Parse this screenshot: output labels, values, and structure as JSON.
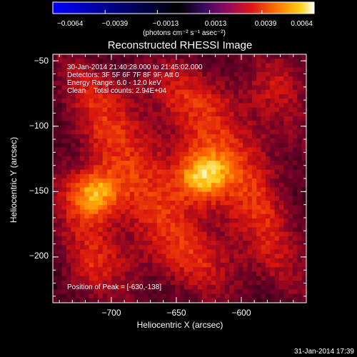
{
  "colorbar": {
    "tick_labels": [
      "−0.0064",
      "−0.0039",
      "−0.0013",
      "0.0013",
      "0.0039",
      "0.0064"
    ],
    "unit_label": "(photons cm⁻² s⁻¹ asec⁻²)",
    "range": [
      -0.0064,
      0.0064
    ],
    "colormap": [
      "#0000ff",
      "#000000",
      "#2a0a5a",
      "#7a0a70",
      "#d0101a",
      "#ff6a00",
      "#ffd21a",
      "#ffffff"
    ]
  },
  "chart_data": {
    "type": "heatmap",
    "title": "Reconstructed RHESSI Image",
    "xlabel": "Heliocentric X (arcsec)",
    "ylabel": "Heliocentric Y (arcsec)",
    "xlim": [
      -745,
      -550
    ],
    "ylim": [
      -235,
      -45
    ],
    "x_ticks": [
      -700,
      -650,
      -600
    ],
    "y_ticks": [
      -50,
      -100,
      -150,
      -200
    ],
    "x_tick_labels": [
      "−700",
      "−650",
      "−600"
    ],
    "y_tick_labels": [
      "−50",
      "−100",
      "−150",
      "−200"
    ],
    "sources": [
      {
        "x": -630,
        "y": -138,
        "peak": 1.0
      },
      {
        "x": -713,
        "y": -152,
        "peak": 0.9
      }
    ],
    "peak_position": [
      -630,
      -138
    ],
    "annotations": [
      "30-Jan-2014 21:40:28.000 to 21:45:02.000",
      "Detectors: 3F 5F 6F 7F 8F 9F, Att 0",
      "Energy Range: 6.0 - 12.0 keV",
      "Clean    Total counts: 2.94E+04"
    ],
    "peak_label": "Position of Peak = [-630,-138]"
  },
  "footer": {
    "timestamp": "31-Jan-2014 17:39"
  }
}
